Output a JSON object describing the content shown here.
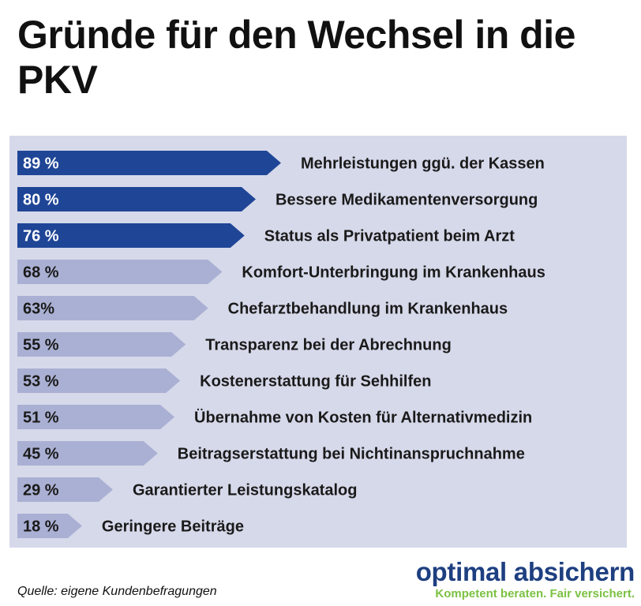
{
  "title": "Gründe für den Wechsel in die PKV",
  "chart_data": {
    "type": "bar",
    "orientation": "horizontal",
    "title": "Gründe für den Wechsel in die PKV",
    "categories": [
      "Mehrleistungen ggü. der Kassen",
      "Bessere Medikamentenversorgung",
      "Status als Privatpatient beim Arzt",
      "Komfort-Unterbringung im Krankenhaus",
      "Chefarztbehandlung im Krankenhaus",
      "Transparenz bei der Abrechnung",
      "Kostenerstattung für Sehhilfen",
      "Übernahme von Kosten für Alternativmedizin",
      "Beitragserstattung bei Nichtinanspruchnahme",
      "Garantierter Leistungskatalog",
      "Geringere Beiträge"
    ],
    "values": [
      89,
      80,
      76,
      68,
      63,
      55,
      53,
      51,
      45,
      29,
      18
    ],
    "value_labels": [
      "89 %",
      "80 %",
      "76 %",
      "68 %",
      "63%",
      "55 %",
      "53 %",
      "51 %",
      "45 %",
      "29 %",
      "18 %"
    ],
    "highlight_count": 3,
    "unit": "%",
    "colors": {
      "highlight": "#1f4596",
      "normal": "#aab0d3",
      "panel": "#d6d9ea",
      "highlight_text": "#ffffff",
      "normal_text": "#1a1a1a"
    }
  },
  "source": "Quelle: eigene Kundenbefragungen",
  "brand": {
    "name": "optimal absichern",
    "slogan": "Kompetent beraten. Fair versichert."
  }
}
